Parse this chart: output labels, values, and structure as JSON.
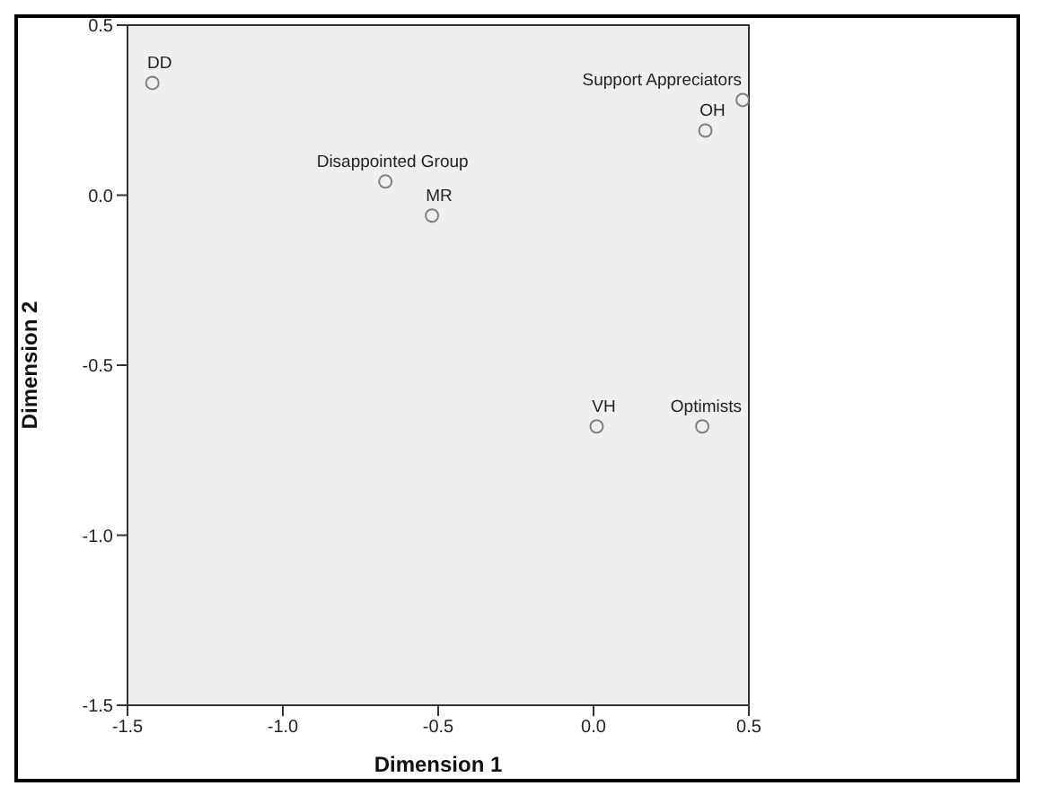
{
  "chart_data": {
    "type": "scatter",
    "xlabel": "Dimension 1",
    "ylabel": "Dimension 2",
    "xlim": [
      -1.5,
      0.5
    ],
    "ylim": [
      -1.5,
      0.5
    ],
    "xticks": [
      {
        "value": -1.5,
        "label": "-1.5"
      },
      {
        "value": -1,
        "label": "-1.0"
      },
      {
        "value": -0.5,
        "label": "-0.5"
      },
      {
        "value": 0,
        "label": "0.0"
      },
      {
        "value": 0.5,
        "label": "0.5"
      }
    ],
    "yticks": [
      {
        "value": -1.5,
        "label": "-1.5"
      },
      {
        "value": -1,
        "label": "-1.0"
      },
      {
        "value": -0.5,
        "label": "-0.5"
      },
      {
        "value": 0,
        "label": "0.0"
      },
      {
        "value": 0.5,
        "label": "0.5"
      }
    ],
    "legend": false,
    "marker": "circle",
    "series": [
      {
        "name": "DD",
        "color": "#808080",
        "x": [
          -1.42
        ],
        "values": [
          0.33
        ]
      },
      {
        "name": "Disappointed Group",
        "color": "#808080",
        "x": [
          -0.67
        ],
        "values": [
          0.04
        ]
      },
      {
        "name": "MR",
        "color": "#808080",
        "x": [
          -0.52
        ],
        "values": [
          -0.06
        ]
      },
      {
        "name": "Support Appreciators",
        "color": "#808080",
        "x": [
          0.48
        ],
        "values": [
          0.28
        ]
      },
      {
        "name": "OH",
        "color": "#808080",
        "x": [
          0.36
        ],
        "values": [
          0.19
        ]
      },
      {
        "name": "VH",
        "color": "#808080",
        "x": [
          0.01
        ],
        "values": [
          -0.68
        ]
      },
      {
        "name": "Optimists",
        "color": "#808080",
        "x": [
          0.35
        ],
        "values": [
          -0.68
        ]
      }
    ]
  }
}
